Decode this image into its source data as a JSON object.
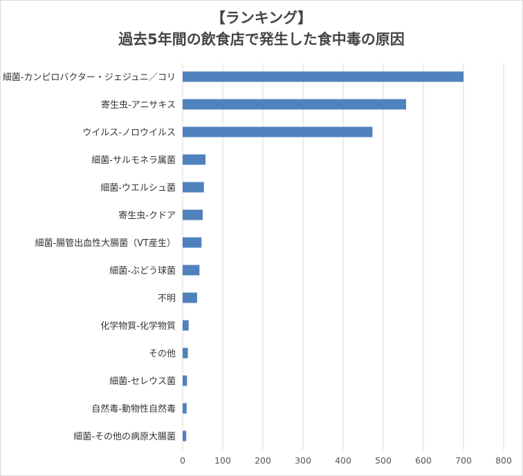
{
  "chart_data": {
    "type": "bar",
    "orientation": "horizontal",
    "title_lines": [
      "【ランキング】",
      "過去5年間の飲食店で発生した食中毒の原因"
    ],
    "categories": [
      "細菌-カンピロバクター・ジェジュニ／コリ",
      "寄生虫-アニサキス",
      "ウイルス-ノロウイルス",
      "細菌-サルモネラ属菌",
      "細菌-ウエルシュ菌",
      "寄生虫-クドア",
      "細菌-腸管出血性大腸菌（VT産生）",
      "細菌-ぶどう球菌",
      "不明",
      "化学物質-化学物質",
      "その他",
      "細菌-セレウス菌",
      "自然毒-動物性自然毒",
      "細菌-その他の病原大腸菌"
    ],
    "values": [
      700,
      557,
      473,
      57,
      53,
      50,
      47,
      42,
      36,
      15,
      13,
      11,
      10,
      9
    ],
    "xlim": [
      0,
      800
    ],
    "xticks": [
      0,
      100,
      200,
      300,
      400,
      500,
      600,
      700,
      800
    ],
    "grid": true,
    "bar_color": "#4F81BD",
    "grid_color": "#d9d9d9",
    "xlabel": "",
    "ylabel": ""
  }
}
